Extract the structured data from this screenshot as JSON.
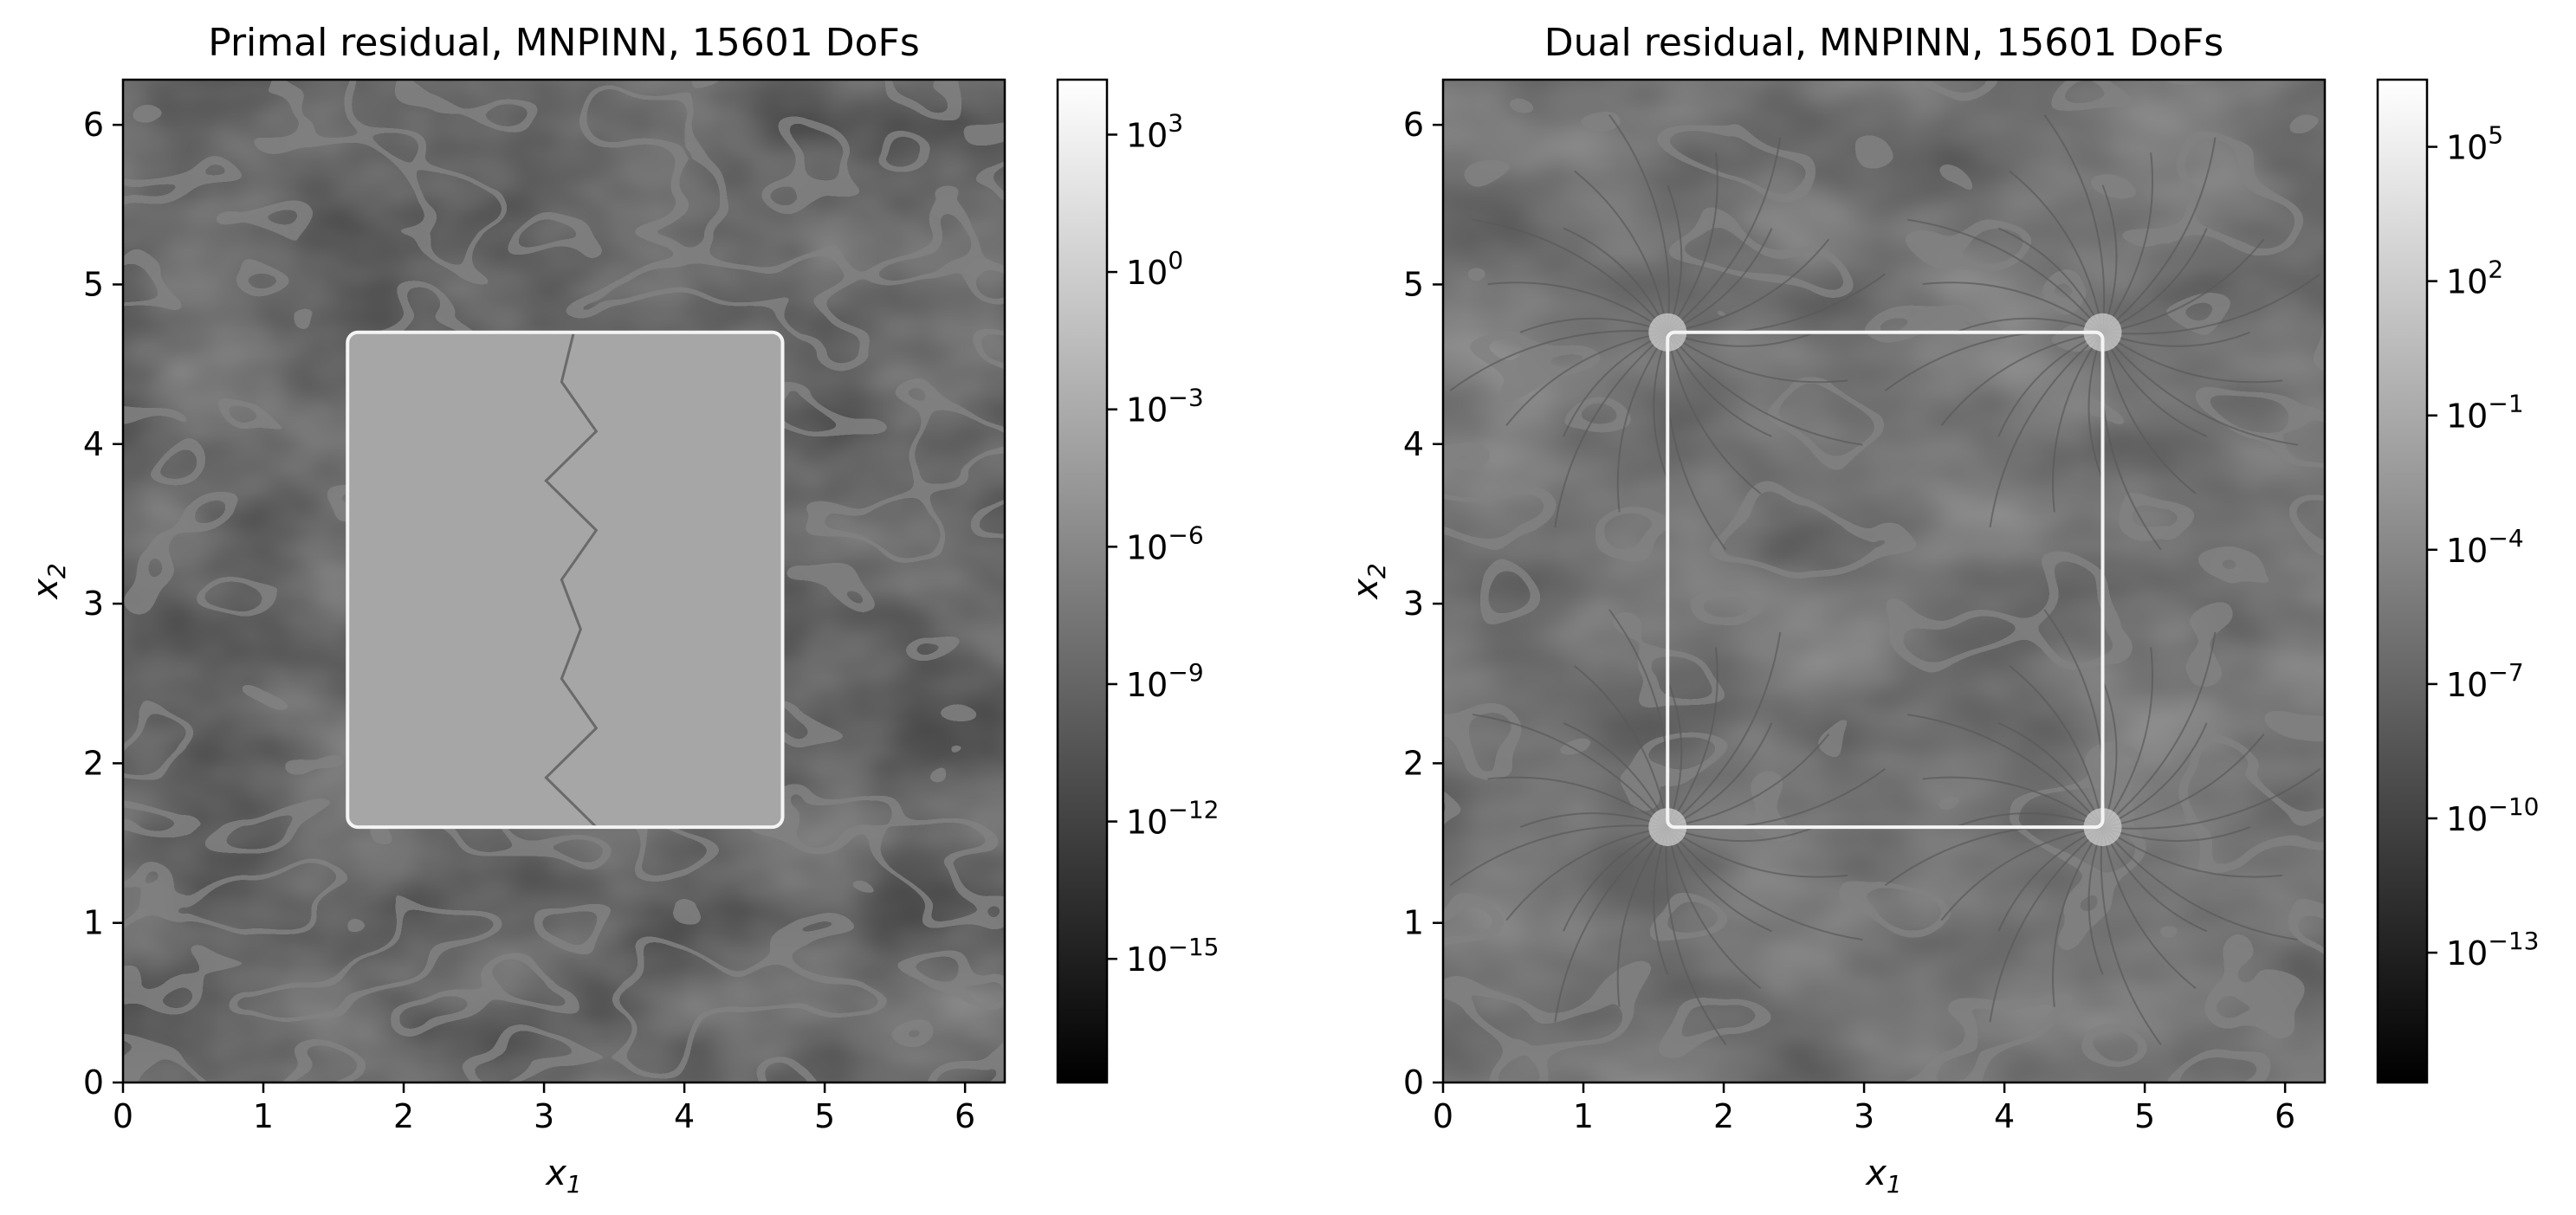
{
  "chart_data": [
    {
      "type": "heatmap",
      "title": "Primal residual, MNPINN, 15601 DoFs",
      "xlabel": {
        "base": "x",
        "sub": "1"
      },
      "ylabel": {
        "base": "x",
        "sub": "2"
      },
      "xlim": [
        0,
        6.283
      ],
      "ylim": [
        0,
        6.283
      ],
      "xticks": [
        0,
        1,
        2,
        3,
        4,
        5,
        6
      ],
      "yticks": [
        0,
        1,
        2,
        3,
        4,
        5,
        6
      ],
      "inner_box": {
        "x": [
          1.6,
          4.7
        ],
        "y": [
          1.6,
          4.7
        ]
      },
      "colormap": "gray",
      "colorbar": {
        "scale": "log",
        "exp_min": -17.7,
        "exp_max": 4.2,
        "tick_exponents": [
          "3",
          "0",
          "−3",
          "−6",
          "−9",
          "−12",
          "−15"
        ],
        "tick_values": [
          3,
          0,
          -3,
          -6,
          -9,
          -12,
          -15
        ]
      }
    },
    {
      "type": "heatmap",
      "title": "Dual residual, MNPINN, 15601 DoFs",
      "xlabel": {
        "base": "x",
        "sub": "1"
      },
      "ylabel": {
        "base": "x",
        "sub": "2"
      },
      "xlim": [
        0,
        6.283
      ],
      "ylim": [
        0,
        6.283
      ],
      "xticks": [
        0,
        1,
        2,
        3,
        4,
        5,
        6
      ],
      "yticks": [
        0,
        1,
        2,
        3,
        4,
        5,
        6
      ],
      "inner_box": {
        "x": [
          1.6,
          4.7
        ],
        "y": [
          1.6,
          4.7
        ]
      },
      "colormap": "gray",
      "colorbar": {
        "scale": "log",
        "exp_min": -15.9,
        "exp_max": 6.5,
        "tick_exponents": [
          "5",
          "2",
          "−1",
          "−4",
          "−7",
          "−10",
          "−13"
        ],
        "tick_values": [
          5,
          2,
          -1,
          -4,
          -7,
          -10,
          -13
        ]
      }
    }
  ],
  "colorbar_tick_base": "10"
}
